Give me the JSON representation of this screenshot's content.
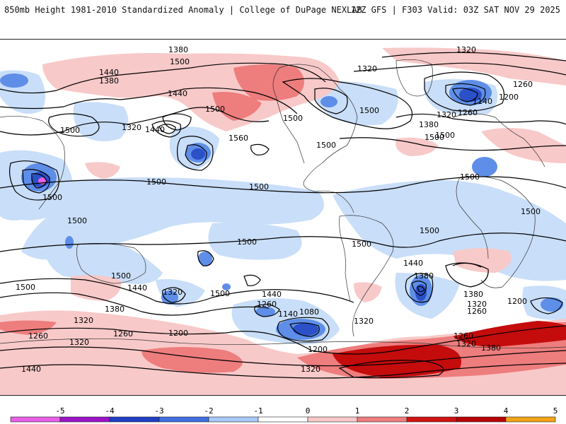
{
  "header": {
    "left_title": "850mb Height 1981-2010 Standardized Anomaly | College of DuPage NEXLAB",
    "right_title": "12Z GFS | F303 Valid: 03Z SAT NOV 29 2025"
  },
  "map": {
    "contour_labels": [
      "1380",
      "1500",
      "1320",
      "1320",
      "1260",
      "1440",
      "1380",
      "1500",
      "1440",
      "1500",
      "1320",
      "1440",
      "1500",
      "1560",
      "1500",
      "1500",
      "1380",
      "1140",
      "1200",
      "1320",
      "1260",
      "1500",
      "1500",
      "1500",
      "1560",
      "1500",
      "1500",
      "1500",
      "1500",
      "1500",
      "1500",
      "1500",
      "1500",
      "1440",
      "1380",
      "1500",
      "1440",
      "1320",
      "1500",
      "1440",
      "1380",
      "1260",
      "1140",
      "1080",
      "1320",
      "1200",
      "1320",
      "1260",
      "1200",
      "1320",
      "1260",
      "1320",
      "1380",
      "1440",
      "1260",
      "1200",
      "1320",
      "1380",
      "1440",
      "1260",
      "1320",
      "1500"
    ]
  },
  "legend": {
    "tick_labels": [
      "-5",
      "-4",
      "-3",
      "-2",
      "-1",
      "0",
      "1",
      "2",
      "3",
      "4",
      "5"
    ],
    "colors": [
      "#e85fe8",
      "#9a14c8",
      "#1f3ec4",
      "#3f6fe0",
      "#a9c9f6",
      "#ffffff",
      "#f8c9c9",
      "#ee7d7d",
      "#d01212",
      "#b80000",
      "#f3a316"
    ]
  }
}
